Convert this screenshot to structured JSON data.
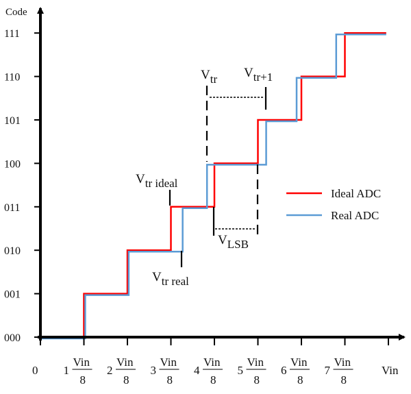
{
  "chart_data": {
    "type": "line",
    "ylabel": "Code",
    "xlabel": "Vin",
    "y_tick_labels": [
      "000",
      "001",
      "010",
      "011",
      "100",
      "101",
      "110",
      "111"
    ],
    "x_tick_labels": [
      {
        "num": "0",
        "frac": ""
      },
      {
        "num": "1",
        "frac": "Vin/8"
      },
      {
        "num": "2",
        "frac": "Vin/8"
      },
      {
        "num": "3",
        "frac": "Vin/8"
      },
      {
        "num": "4",
        "frac": "Vin/8"
      },
      {
        "num": "5",
        "frac": "Vin/8"
      },
      {
        "num": "6",
        "frac": "Vin/8"
      },
      {
        "num": "7",
        "frac": "Vin/8"
      },
      {
        "num": "Vin",
        "frac": ""
      }
    ],
    "frac_numerator": "Vin",
    "frac_denominator": "8",
    "xlim": [
      0,
      8
    ],
    "ylim": [
      0,
      7
    ],
    "series": [
      {
        "name": "Ideal ADC",
        "color": "#ff0000",
        "transitions": [
          1,
          2,
          3,
          4,
          5,
          6,
          7
        ],
        "x_end": 7.95
      },
      {
        "name": "Real ADC",
        "color": "#5b9bd5",
        "transitions": [
          1.03,
          2.03,
          3.27,
          3.83,
          5.19,
          5.89,
          6.8
        ],
        "x_end": 7.95
      }
    ],
    "legend": "right",
    "annotations": {
      "vtr": {
        "base": "V",
        "sub": "tr"
      },
      "vtr1": {
        "base": "V",
        "sub": "tr+1"
      },
      "vtr_ideal": {
        "base": "V",
        "sub": "tr ideal"
      },
      "vtr_real": {
        "base": "V",
        "sub": "tr real"
      },
      "vlsb": {
        "base": "V",
        "sub": "LSB"
      }
    }
  }
}
